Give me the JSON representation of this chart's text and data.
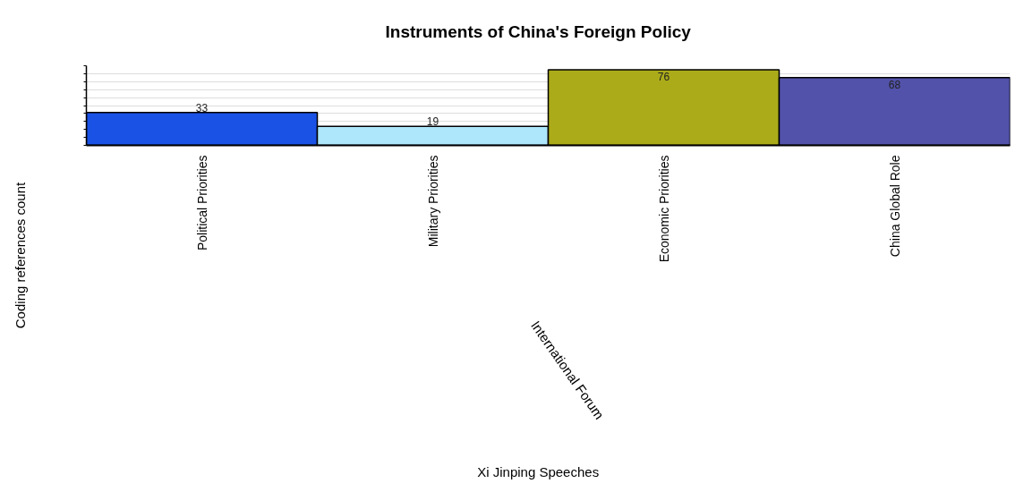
{
  "chart_data": {
    "type": "bar",
    "title": "Instruments of China's Foreign Policy",
    "categories": [
      "Political Priorities",
      "Military Priorities",
      "Economic Priorities",
      "China Global Role"
    ],
    "values": [
      33,
      19,
      76,
      68
    ],
    "colors": [
      "#1a52e6",
      "#aee6fb",
      "#abab1a",
      "#5252aa"
    ],
    "ylabel": "Coding references count",
    "annotations": [
      "International Forum",
      "Xi Jinping Speeches"
    ],
    "ylim": [
      0,
      80
    ],
    "yticks": [
      {
        "value": 0,
        "label": null
      },
      {
        "value": 8,
        "label": null
      },
      {
        "value": 16,
        "label": null
      },
      {
        "value": 24,
        "label": null
      },
      {
        "value": 32,
        "label": null
      },
      {
        "value": 40,
        "label": null
      },
      {
        "value": 48,
        "label": null
      },
      {
        "value": 56,
        "label": null
      },
      {
        "value": 64,
        "label": null
      },
      {
        "value": 72,
        "label": null
      },
      {
        "value": 80,
        "label": null
      }
    ],
    "tick_labels": "x",
    "grid": "y",
    "data_labels": true
  }
}
